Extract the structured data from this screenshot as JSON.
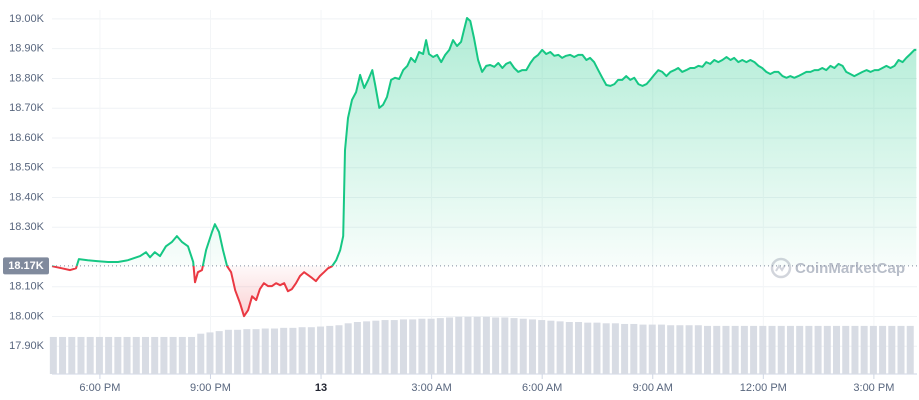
{
  "chart_data": {
    "type": "line",
    "watermark": "CoinMarketCap",
    "reference": {
      "value": 18170,
      "label": "18.17K"
    },
    "up_color": "#16c784",
    "down_color": "#ea3943",
    "xlim": [
      16.7,
      40.17
    ],
    "ylim": [
      17800,
      19030
    ],
    "grid": true,
    "xticks": [
      {
        "value": 18,
        "label": "6:00 PM"
      },
      {
        "value": 21,
        "label": "9:00 PM"
      },
      {
        "value": 24,
        "label": "13"
      },
      {
        "value": 27,
        "label": "3:00 AM"
      },
      {
        "value": 30,
        "label": "6:00 AM"
      },
      {
        "value": 33,
        "label": "9:00 AM"
      },
      {
        "value": 36,
        "label": "12:00 PM"
      },
      {
        "value": 39,
        "label": "3:00 PM"
      }
    ],
    "yticks": [
      {
        "value": 19000,
        "label": "19.00K"
      },
      {
        "value": 18900,
        "label": "18.90K"
      },
      {
        "value": 18800,
        "label": "18.80K"
      },
      {
        "value": 18700,
        "label": "18.70K"
      },
      {
        "value": 18600,
        "label": "18.60K"
      },
      {
        "value": 18500,
        "label": "18.50K"
      },
      {
        "value": 18400,
        "label": "18.40K"
      },
      {
        "value": 18300,
        "label": "18.30K"
      },
      {
        "value": 18100,
        "label": "18.10K"
      },
      {
        "value": 18000,
        "label": "18.00K"
      },
      {
        "value": 17900,
        "label": "17.90K"
      }
    ],
    "x": [
      16.7,
      16.97,
      17.19,
      17.35,
      17.43,
      17.67,
      17.92,
      18.22,
      18.49,
      18.76,
      19.09,
      19.25,
      19.36,
      19.49,
      19.63,
      19.79,
      19.95,
      20.09,
      20.23,
      20.39,
      20.53,
      20.58,
      20.66,
      20.77,
      20.88,
      21.04,
      21.12,
      21.23,
      21.34,
      21.45,
      21.56,
      21.67,
      21.8,
      21.91,
      22.02,
      22.13,
      22.24,
      22.34,
      22.45,
      22.56,
      22.67,
      22.78,
      22.89,
      23.0,
      23.1,
      23.21,
      23.32,
      23.43,
      23.54,
      23.65,
      23.76,
      23.86,
      23.97,
      24.08,
      24.19,
      24.3,
      24.41,
      24.52,
      24.6,
      24.65,
      24.73,
      24.84,
      24.95,
      25.06,
      25.17,
      25.28,
      25.39,
      25.47,
      25.58,
      25.68,
      25.79,
      25.9,
      26.01,
      26.12,
      26.23,
      26.34,
      26.44,
      26.55,
      26.66,
      26.77,
      26.85,
      26.93,
      27.04,
      27.15,
      27.26,
      27.37,
      27.48,
      27.58,
      27.69,
      27.8,
      27.88,
      27.96,
      28.05,
      28.15,
      28.26,
      28.37,
      28.48,
      28.59,
      28.7,
      28.81,
      28.92,
      29.02,
      29.13,
      29.24,
      29.35,
      29.46,
      29.57,
      29.68,
      29.78,
      29.89,
      30.0,
      30.11,
      30.22,
      30.33,
      30.44,
      30.54,
      30.65,
      30.76,
      30.87,
      30.98,
      31.09,
      31.2,
      31.3,
      31.41,
      31.52,
      31.63,
      31.74,
      31.85,
      31.96,
      32.06,
      32.17,
      32.28,
      32.39,
      32.5,
      32.61,
      32.72,
      32.83,
      32.93,
      33.04,
      33.15,
      33.26,
      33.37,
      33.48,
      33.59,
      33.69,
      33.8,
      33.91,
      34.02,
      34.13,
      34.24,
      34.35,
      34.45,
      34.56,
      34.67,
      34.78,
      34.89,
      35.0,
      35.11,
      35.21,
      35.32,
      35.43,
      35.54,
      35.65,
      35.76,
      35.87,
      35.97,
      36.08,
      36.19,
      36.3,
      36.41,
      36.52,
      36.63,
      36.73,
      36.84,
      36.95,
      37.06,
      37.17,
      37.28,
      37.39,
      37.49,
      37.6,
      37.71,
      37.82,
      37.93,
      38.04,
      38.15,
      38.25,
      38.36,
      38.47,
      38.58,
      38.69,
      38.8,
      38.91,
      39.02,
      39.12,
      39.23,
      39.34,
      39.45,
      39.56,
      39.67,
      39.78,
      39.88,
      39.99,
      40.1,
      40.15
    ],
    "values": [
      18169,
      18162,
      18156,
      18162,
      18193,
      18189,
      18186,
      18183,
      18183,
      18189,
      18203,
      18216,
      18199,
      18216,
      18203,
      18236,
      18250,
      18270,
      18250,
      18236,
      18183,
      18115,
      18149,
      18156,
      18223,
      18284,
      18310,
      18284,
      18223,
      18169,
      18149,
      18088,
      18045,
      18001,
      18021,
      18068,
      18055,
      18092,
      18112,
      18102,
      18102,
      18112,
      18105,
      18112,
      18085,
      18092,
      18112,
      18136,
      18149,
      18139,
      18129,
      18119,
      18136,
      18149,
      18162,
      18169,
      18189,
      18223,
      18270,
      18559,
      18667,
      18728,
      18754,
      18812,
      18768,
      18795,
      18828,
      18778,
      18701,
      18711,
      18738,
      18795,
      18802,
      18798,
      18828,
      18842,
      18869,
      18855,
      18889,
      18882,
      18929,
      18882,
      18872,
      18879,
      18855,
      18879,
      18896,
      18929,
      18909,
      18923,
      18963,
      19003,
      18993,
      18936,
      18862,
      18822,
      18842,
      18845,
      18839,
      18852,
      18835,
      18849,
      18855,
      18835,
      18822,
      18828,
      18828,
      18852,
      18869,
      18879,
      18896,
      18882,
      18889,
      18876,
      18879,
      18869,
      18876,
      18879,
      18872,
      18879,
      18879,
      18862,
      18869,
      18855,
      18828,
      18802,
      18778,
      18775,
      18781,
      18795,
      18795,
      18808,
      18795,
      18802,
      18781,
      18775,
      18781,
      18795,
      18812,
      18828,
      18822,
      18808,
      18822,
      18828,
      18835,
      18822,
      18828,
      18835,
      18835,
      18842,
      18839,
      18855,
      18849,
      18862,
      18855,
      18862,
      18872,
      18862,
      18869,
      18855,
      18862,
      18855,
      18862,
      18855,
      18842,
      18835,
      18822,
      18815,
      18822,
      18822,
      18808,
      18802,
      18808,
      18802,
      18808,
      18815,
      18822,
      18822,
      18828,
      18828,
      18835,
      18828,
      18842,
      18835,
      18849,
      18842,
      18822,
      18815,
      18808,
      18815,
      18822,
      18828,
      18822,
      18828,
      18828,
      18835,
      18842,
      18835,
      18842,
      18862,
      18855,
      18869,
      18882,
      18896,
      18896
    ],
    "volume": {
      "color": "#d8dce4",
      "ylim": [
        0,
        100
      ],
      "x": [
        16.75,
        17,
        17.25,
        17.5,
        17.75,
        18,
        18.25,
        18.5,
        18.75,
        19,
        19.25,
        19.5,
        19.75,
        20,
        20.25,
        20.5,
        20.75,
        21,
        21.25,
        21.5,
        21.75,
        22,
        22.25,
        22.5,
        22.75,
        23,
        23.25,
        23.5,
        23.75,
        24,
        24.25,
        24.5,
        24.75,
        25,
        25.25,
        25.5,
        25.75,
        26,
        26.25,
        26.5,
        26.75,
        27,
        27.25,
        27.5,
        27.75,
        28,
        28.25,
        28.5,
        28.75,
        29,
        29.25,
        29.5,
        29.75,
        30,
        30.25,
        30.5,
        30.75,
        31,
        31.25,
        31.5,
        31.75,
        32,
        32.25,
        32.5,
        32.75,
        33,
        33.25,
        33.5,
        33.75,
        34,
        34.25,
        34.5,
        34.75,
        35,
        35.25,
        35.5,
        35.75,
        36,
        36.25,
        36.5,
        36.75,
        37,
        37.25,
        37.5,
        37.75,
        38,
        38.25,
        38.5,
        38.75,
        39,
        39.25,
        39.5,
        39.75,
        40
      ],
      "values": [
        57,
        57,
        57,
        57,
        57,
        57,
        57,
        57,
        57,
        57,
        57,
        57,
        57,
        57,
        57,
        57,
        62,
        64,
        66,
        68,
        68,
        69,
        69,
        70,
        70,
        71,
        71,
        72,
        72,
        73,
        74,
        75,
        78,
        80,
        81,
        82,
        83,
        83,
        84,
        84,
        85,
        85,
        86,
        87,
        88,
        88,
        88,
        88,
        87,
        87,
        86,
        85,
        84,
        83,
        82,
        81,
        80,
        80,
        79,
        79,
        78,
        78,
        77,
        77,
        76,
        76,
        76,
        75,
        75,
        75,
        75,
        74,
        74,
        74,
        74,
        74,
        74,
        74,
        74,
        74,
        74,
        74,
        74,
        74,
        74,
        74,
        74,
        74,
        74,
        74,
        74,
        74,
        74,
        74
      ]
    }
  }
}
